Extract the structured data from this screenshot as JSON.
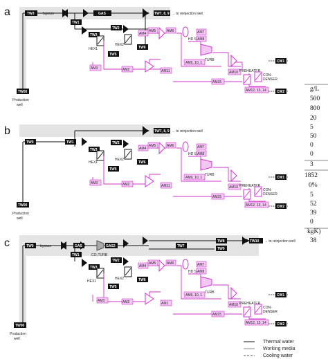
{
  "panels": [
    {
      "letter": "a",
      "nodes": {
        "tw0": "TW0",
        "tw1": "TW1",
        "tw2": "TW2",
        "tw3": "TW3",
        "tw5": "TW5",
        "tw6": "TW6",
        "tw00": "TW00",
        "tw_out": "TW7, 8, 9",
        "gas": "GAS",
        "bypass": "bypass",
        "hex1": "HEX1",
        "hex2": "HEX2",
        "am2": "AM2",
        "am3": "AM3",
        "am4": "AM4",
        "am5": "AM5",
        "am6": "AM6",
        "am7": "AM7",
        "am8": "AM8",
        "am9": "AM9, 10, 1",
        "am10": "AM10",
        "am11": "AM11",
        "am15": "AM15",
        "am_pre": "AM12, 13, 14",
        "hdsep": "HD SEP",
        "turb": "TURB",
        "preheater": "PREHEATER",
        "condenser1": "CON-",
        "condenser2": "DENSER",
        "cw1": "CW1",
        "cw2": "CW2",
        "reinjection": "→ to reinjection well",
        "production1": "Production",
        "production2": "well"
      }
    },
    {
      "letter": "b",
      "nodes": {
        "tw0": "TW0",
        "tw1": "TW1",
        "tw2": "TW2",
        "tw3": "TW3",
        "tw5": "TW5",
        "tw6": "TW6",
        "tw00": "TW00",
        "tw_out": "TW7, 8, 9",
        "hex1": "HEX1",
        "hex2": "HEX2",
        "am2": "AM2",
        "am3": "AM3",
        "am4": "AM4",
        "am5": "AM5",
        "am6": "AM6",
        "am7": "AM7",
        "am8": "AM8",
        "am9": "AM9, 10, 1",
        "am10": "AM10",
        "am11": "AM11",
        "am15": "AM15",
        "am_pre": "AM12, 13, 14",
        "hdsep": "HD SEP",
        "turb": "TURB",
        "preheater": "PREHEATER",
        "condenser1": "CON-",
        "condenser2": "DENSER",
        "cw1": "CW1",
        "cw2": "CW2",
        "reinjection": "→ to reinjection well",
        "production1": "Production",
        "production2": "well"
      }
    },
    {
      "letter": "c",
      "nodes": {
        "tw0": "TW0",
        "tw1": "TW1",
        "tw2": "TW2",
        "tw3": "TW3",
        "tw5": "TW5",
        "tw6": "TW6",
        "tw00": "TW00",
        "tw7": "TW7",
        "tw8": "TW8",
        "tw9": "TW9",
        "tw10": "TW10",
        "gas": "GAS",
        "gas2": "GAS2",
        "co2turb": "CO₂TURB",
        "bypass": "bypass",
        "hex1": "HEX1",
        "hex2": "HEX2",
        "am1": "AM1",
        "am2": "AM2",
        "am3": "AM3",
        "am4": "AM4",
        "am5": "AM5",
        "am6": "AM6",
        "am7": "AM7",
        "am8": "AM8",
        "am9": "AM9, 10, 1",
        "am10": "AM10",
        "am15": "AM15",
        "am_pre": "AM12, 13, 14",
        "hdsep": "HD SEP",
        "turb": "TURB",
        "preheater": "PREHEATER",
        "condenser1": "CON-",
        "condenser2": "DENSER",
        "cw1": "CW1",
        "cw2": "CW2",
        "reinjection": "→ to reinjection well",
        "production1": "Production",
        "production2": "well"
      }
    }
  ],
  "cut_text": [
    "g/L",
    "500",
    "800",
    "20",
    "5",
    "50",
    "0",
    "0",
    "3",
    "1852",
    "0%",
    "5",
    "52",
    "39",
    "0",
    "kgK)",
    "38"
  ],
  "legend": [
    {
      "label": "Thermal water",
      "style": "solid-dark"
    },
    {
      "label": "Working media",
      "style": "solid-gray"
    },
    {
      "label": "Cooling water",
      "style": "dashed"
    }
  ],
  "colors": {
    "thermal": "#111111",
    "working": "#e040e0",
    "cooling": "#555555",
    "shade": "#e4e4e4",
    "node_fill": "#111111",
    "am_fill": "#f4c6f4"
  }
}
